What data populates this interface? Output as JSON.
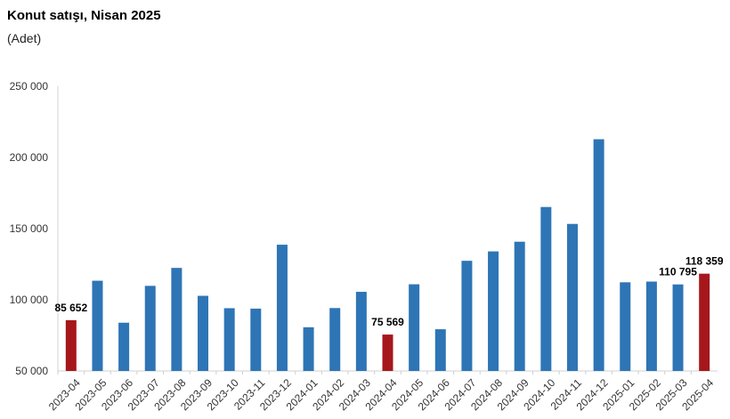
{
  "chart_data": {
    "type": "bar",
    "title": "Konut satışı, Nisan 2025",
    "subtitle": "(Adet)",
    "xlabel": "",
    "ylabel": "",
    "ylim": [
      50000,
      250000
    ],
    "y_ticks": [
      50000,
      100000,
      150000,
      200000,
      250000
    ],
    "y_tick_labels": [
      "50 000",
      "100 000",
      "150 000",
      "200 000",
      "250 000"
    ],
    "grid": false,
    "legend": "none",
    "colors": {
      "default": "#2E75B6",
      "highlight": "#A6171C"
    },
    "categories": [
      "2023-04",
      "2023-05",
      "2023-06",
      "2023-07",
      "2023-08",
      "2023-09",
      "2023-10",
      "2023-11",
      "2023-12",
      "2024-01",
      "2024-02",
      "2024-03",
      "2024-04",
      "2024-05",
      "2024-06",
      "2024-07",
      "2024-08",
      "2024-09",
      "2024-10",
      "2024-11",
      "2024-12",
      "2025-01",
      "2025-02",
      "2025-03",
      "2025-04"
    ],
    "values": [
      85652,
      113400,
      83900,
      109800,
      122400,
      102800,
      94100,
      93800,
      138700,
      80700,
      94200,
      105600,
      75569,
      110900,
      79300,
      127400,
      134000,
      140800,
      165200,
      153300,
      212800,
      112300,
      112800,
      110795,
      118359
    ],
    "highlighted": [
      0,
      12,
      24
    ],
    "data_labels": [
      {
        "index": 0,
        "text": "85 652"
      },
      {
        "index": 12,
        "text": "75 569"
      },
      {
        "index": 23,
        "text": "110 795"
      },
      {
        "index": 24,
        "text": "118 359"
      }
    ]
  }
}
